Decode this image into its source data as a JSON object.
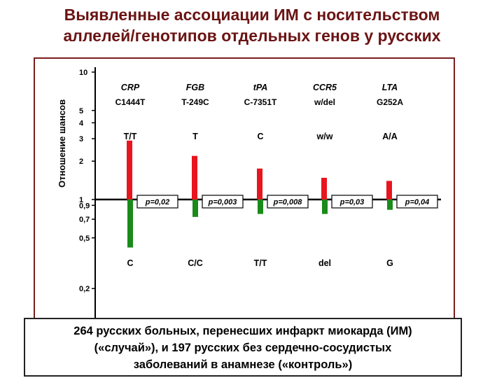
{
  "title": {
    "line1": "Выявленные  ассоциации ИМ с носительством",
    "line2": "аллелей/генотипов отдельных генов у русских"
  },
  "caption": {
    "line1": "264 русских больных, перенесших инфаркт миокарда (ИМ)",
    "line2": "(«случай»), и 197 русских без сердечно-сосудистых",
    "line3": "заболеваний в анамнезе («контроль»)"
  },
  "chart_data": {
    "type": "bar",
    "ylabel": "Отношение шансов",
    "scale": "log",
    "reference_line": 1,
    "y_tick_labels": [
      "10",
      "5",
      "4",
      "3",
      "2",
      "1",
      "0,9",
      "0,7",
      "0,5",
      "0,2"
    ],
    "y_tick_values": [
      10,
      5,
      4,
      3,
      2,
      1,
      0.9,
      0.7,
      0.5,
      0.2
    ],
    "genes": [
      {
        "gene": "CRP",
        "variant": "C1444T",
        "up_label": "T/T",
        "down_label": "C",
        "up_value": 2.9,
        "down_value": 0.42,
        "p": "p=0,02"
      },
      {
        "gene": "FGB",
        "variant": "T-249C",
        "up_label": "T",
        "down_label": "C/C",
        "up_value": 2.2,
        "down_value": 0.73,
        "p": "p=0,003"
      },
      {
        "gene": "tPA",
        "variant": "C-7351T",
        "up_label": "C",
        "down_label": "T/T",
        "up_value": 1.75,
        "down_value": 0.77,
        "p": "p=0,008"
      },
      {
        "gene": "CCR5",
        "variant": "w/del",
        "up_label": "w/w",
        "down_label": "del",
        "up_value": 1.48,
        "down_value": 0.77,
        "p": "p=0,03"
      },
      {
        "gene": "LTA",
        "variant": "G252A",
        "up_label": "A/A",
        "down_label": "G",
        "up_value": 1.4,
        "down_value": 0.83,
        "p": "p=0,04"
      }
    ],
    "colors": {
      "up": "#e8141e",
      "down": "#1a8a1a",
      "axis": "#000000",
      "title": "#6b1414"
    }
  }
}
